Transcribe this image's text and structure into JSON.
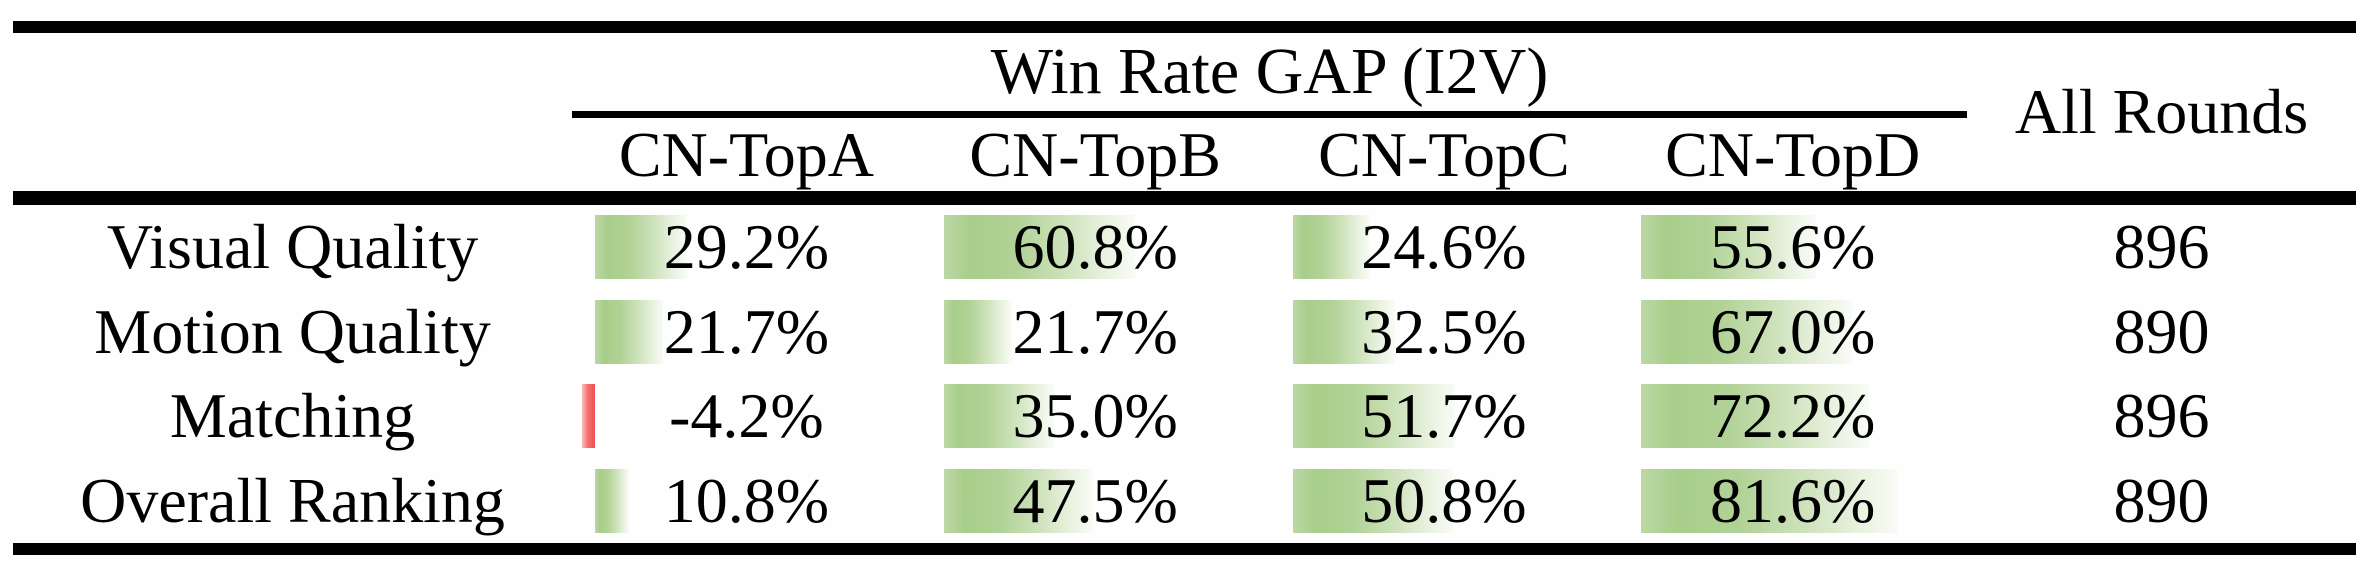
{
  "table": {
    "title": "Win Rate GAP (I2V)",
    "all_rounds_header": "All Rounds",
    "columns": [
      "CN-TopA",
      "CN-TopB",
      "CN-TopC",
      "CN-TopD"
    ],
    "rows": [
      {
        "label": "Visual Quality",
        "values": [
          "29.2%",
          "60.8%",
          "24.6%",
          "55.6%"
        ],
        "all_rounds": "896"
      },
      {
        "label": "Motion Quality",
        "values": [
          "21.7%",
          "21.7%",
          "32.5%",
          "67.0%"
        ],
        "all_rounds": "890"
      },
      {
        "label": "Matching",
        "values": [
          "-4.2%",
          "35.0%",
          "51.7%",
          "72.2%"
        ],
        "all_rounds": "896"
      },
      {
        "label": "Overall Ranking",
        "values": [
          "10.8%",
          "47.5%",
          "50.8%",
          "81.6%"
        ],
        "all_rounds": "890"
      }
    ],
    "colors": {
      "bar_positive_green": "#a8ce8a",
      "bar_negative_red": "#ee4f4f",
      "rule_black": "#000000",
      "text": "#000000",
      "background": "#fefefe"
    }
  },
  "chart_data": {
    "type": "table",
    "title": "Win Rate GAP (I2V)",
    "row_header": [
      "Visual Quality",
      "Motion Quality",
      "Matching",
      "Overall Ranking"
    ],
    "column_header": [
      "CN-TopA",
      "CN-TopB",
      "CN-TopC",
      "CN-TopD",
      "All Rounds"
    ],
    "series": [
      {
        "name": "CN-TopA",
        "values": [
          29.2,
          21.7,
          -4.2,
          10.8
        ]
      },
      {
        "name": "CN-TopB",
        "values": [
          60.8,
          21.7,
          35.0,
          47.5
        ]
      },
      {
        "name": "CN-TopC",
        "values": [
          24.6,
          32.5,
          51.7,
          50.8
        ]
      },
      {
        "name": "CN-TopD",
        "values": [
          55.6,
          67.0,
          72.2,
          81.6
        ]
      }
    ],
    "all_rounds": [
      896,
      890,
      896,
      890
    ],
    "units": "percent win-rate gap, in-cell green data bars (red for negative)"
  }
}
